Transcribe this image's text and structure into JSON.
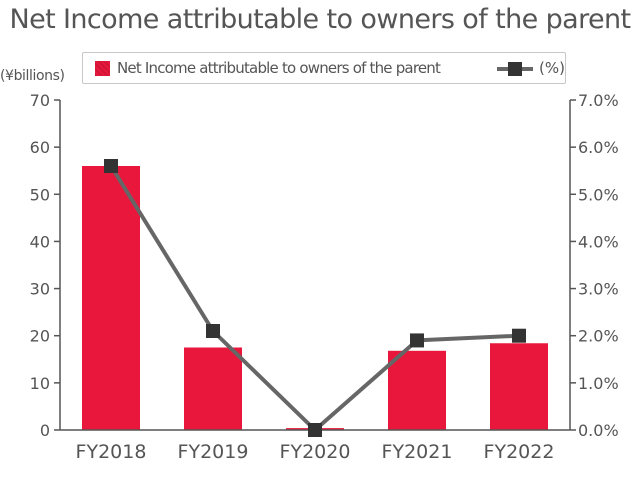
{
  "chart_data": {
    "type": "bar",
    "title": "Net Income attributable to owners of the parent",
    "unit_label": "(¥billions)",
    "categories": [
      "FY2018",
      "FY2019",
      "FY2020",
      "FY2021",
      "FY2022"
    ],
    "series": [
      {
        "name": "Net Income attributable to owners of the parent",
        "type": "bar",
        "axis": "left",
        "color": "#e8173b",
        "values": [
          56,
          17.5,
          0.4,
          16.8,
          18.4
        ]
      },
      {
        "name": "(%)",
        "type": "line",
        "axis": "right",
        "color": "#666666",
        "marker_color": "#333333",
        "values": [
          5.6,
          2.1,
          0.0,
          1.9,
          2.0
        ]
      }
    ],
    "ylim_left": [
      0,
      70
    ],
    "yticks_left": [
      "0",
      "10",
      "20",
      "30",
      "40",
      "50",
      "60",
      "70"
    ],
    "ylim_right": [
      0,
      7
    ],
    "yticks_right": [
      "0.0%",
      "1.0%",
      "2.0%",
      "3.0%",
      "4.0%",
      "5.0%",
      "6.0%",
      "7.0%"
    ],
    "grid": false,
    "legend_position": "top"
  }
}
